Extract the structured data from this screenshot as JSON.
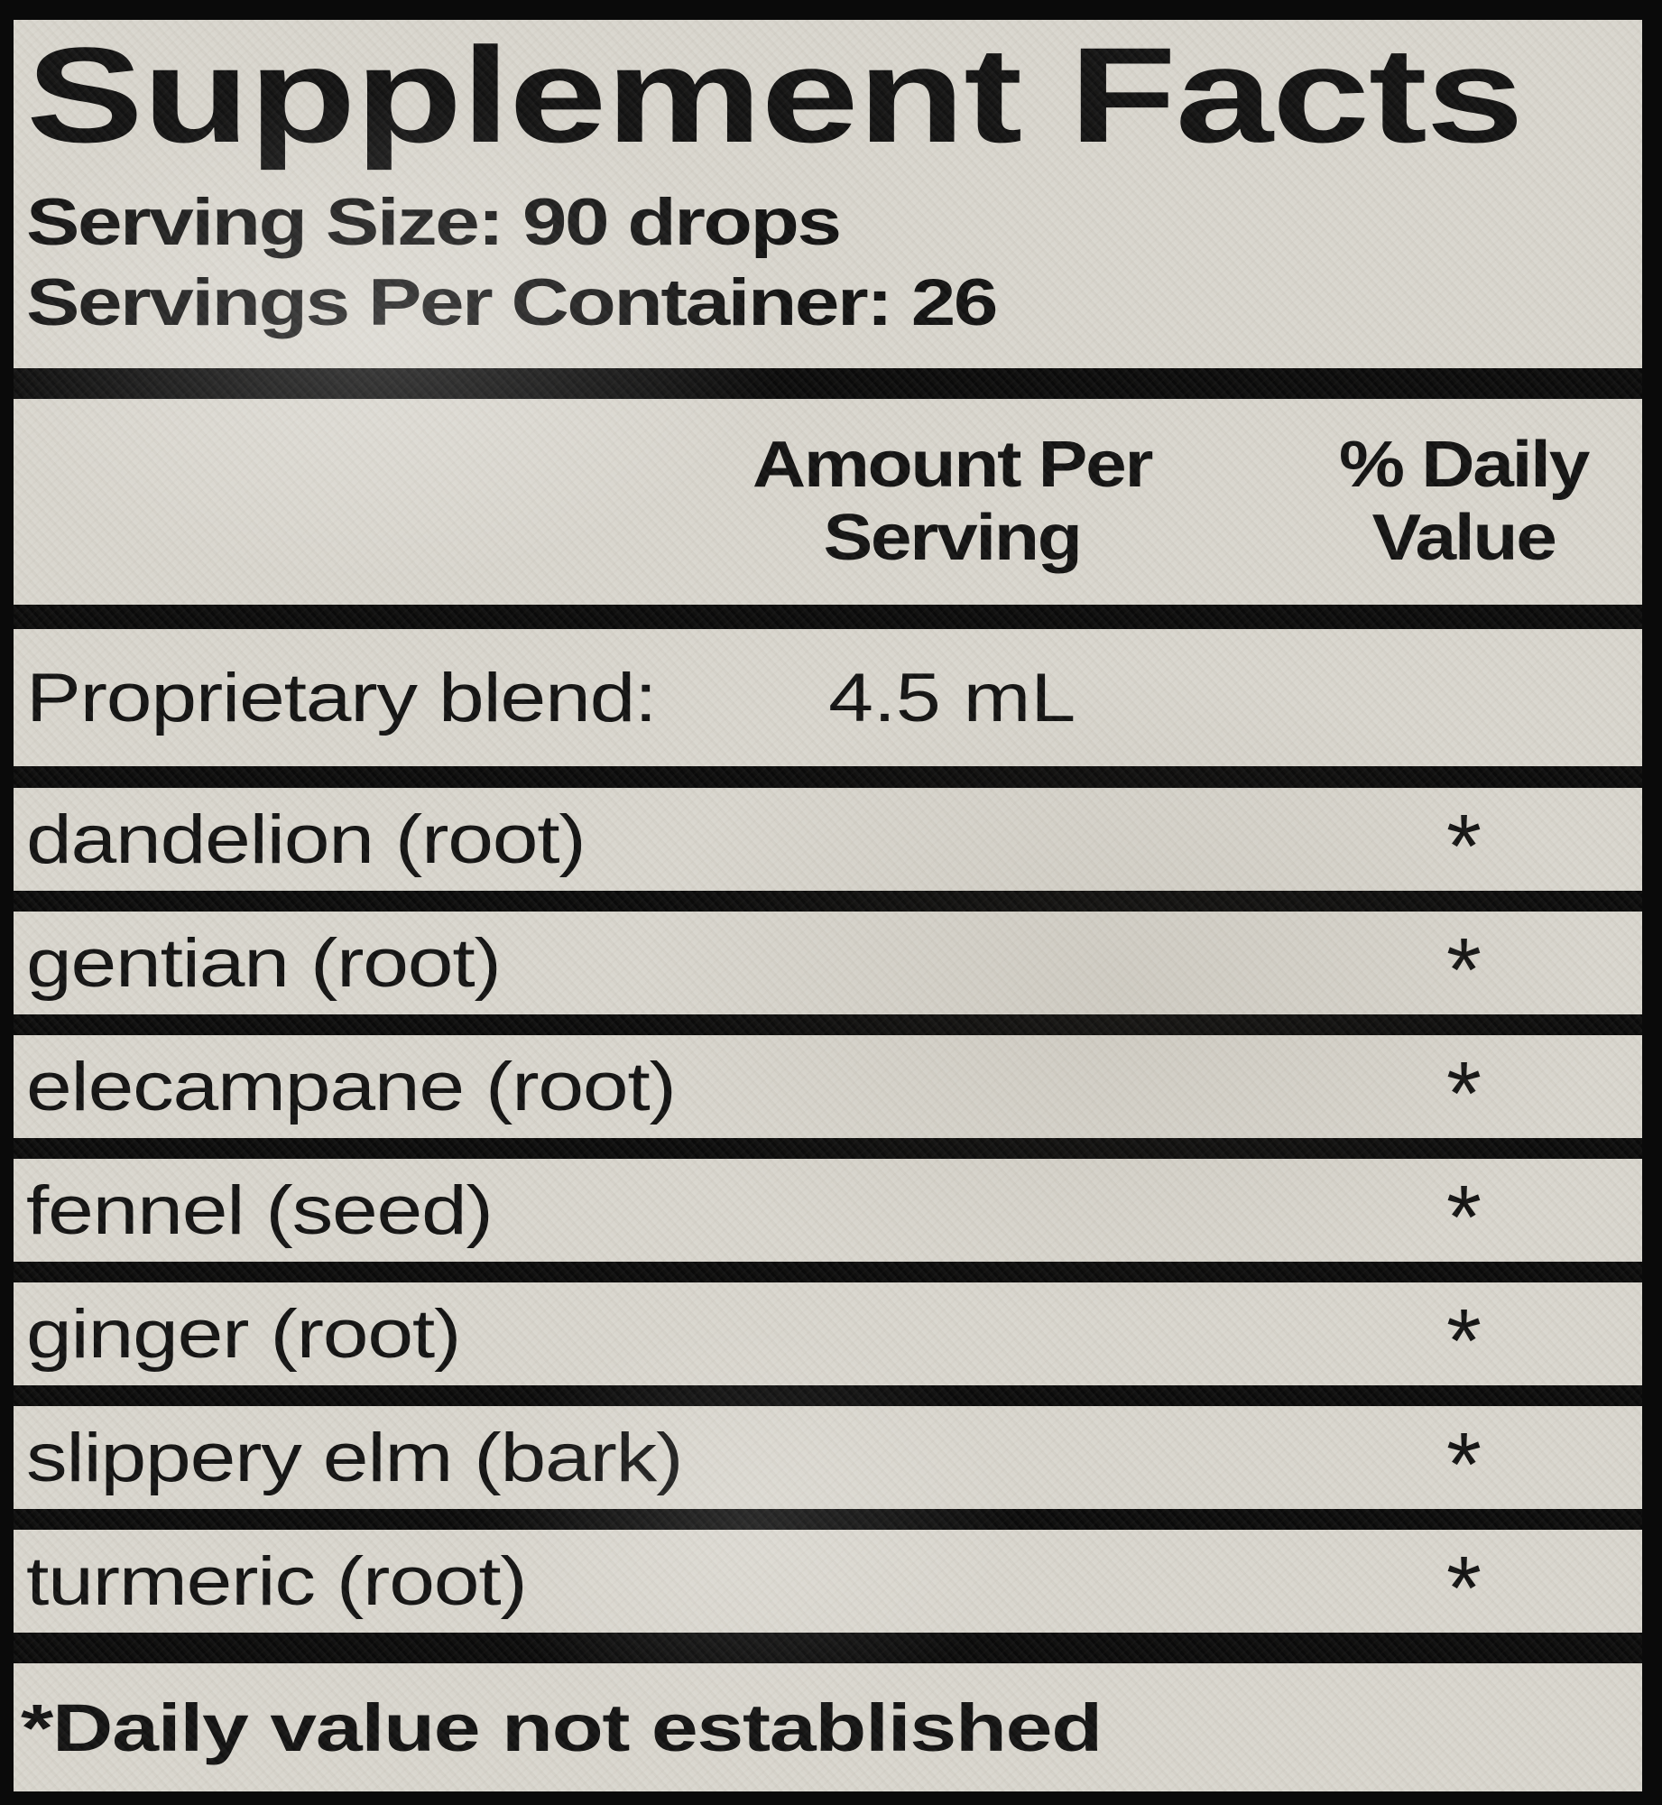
{
  "title": "Supplement Facts",
  "serving": {
    "size_line": "Serving Size: 90 drops",
    "per_container_line": "Servings Per Container: 26"
  },
  "table": {
    "amount_header": [
      "Amount Per",
      "Serving"
    ],
    "dv_header": [
      "% Daily",
      "Value"
    ],
    "blend": {
      "name": "Proprietary blend:",
      "amount": "4.5 mL"
    },
    "ingredients": [
      {
        "name": "dandelion (root)",
        "dv": "*"
      },
      {
        "name": "gentian (root)",
        "dv": "*"
      },
      {
        "name": "elecampane (root)",
        "dv": "*"
      },
      {
        "name": "fennel (seed)",
        "dv": "*"
      },
      {
        "name": "ginger (root)",
        "dv": "*"
      },
      {
        "name": "slippery elm (bark)",
        "dv": "*"
      },
      {
        "name": "turmeric (root)",
        "dv": "*"
      }
    ],
    "footnote": "*Daily value not established"
  },
  "colors": {
    "paper": "#d9d6ce",
    "ink": "#121212",
    "divider": "#0a0a0a"
  }
}
